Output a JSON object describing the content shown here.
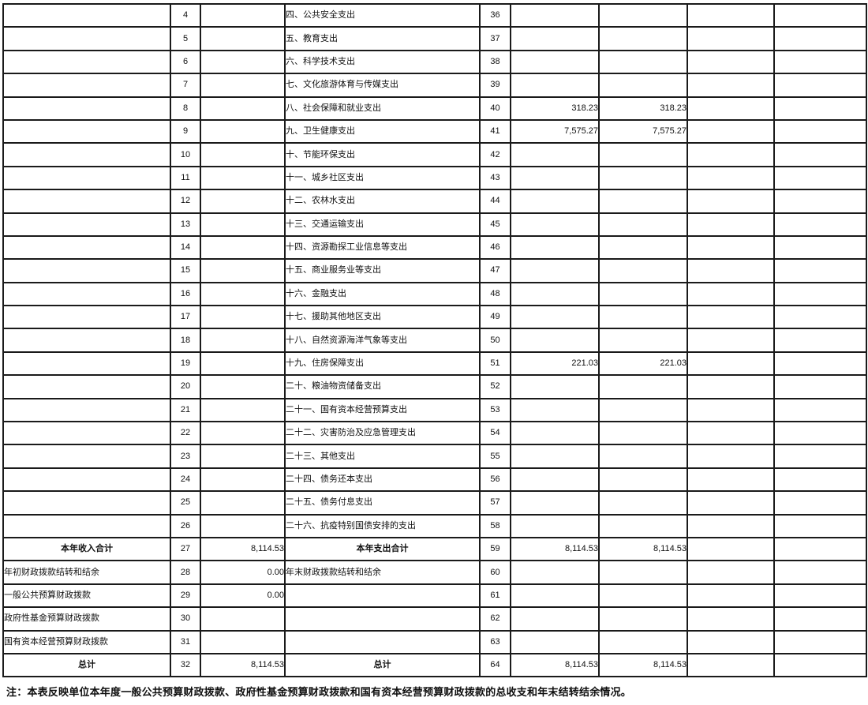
{
  "note": "注：本表反映单位本年度一般公共预算财政拨款、政府性基金预算财政拨款和国有资本经营预算财政拨款的总收支和年末结转结余情况。",
  "totals": {
    "current_year_income_total": "8,114.53",
    "current_year_expenditure_total": "8,114.53",
    "grand_total": "8,114.53"
  },
  "table": {
    "rows": [
      {
        "left_label": "",
        "left_style": "empty",
        "left_line": "4",
        "left_value": "",
        "right_label": "四、公共安全支出",
        "right_style": "item",
        "right_line": "36",
        "right_value1": "",
        "right_value2": ""
      },
      {
        "left_label": "",
        "left_style": "empty",
        "left_line": "5",
        "left_value": "",
        "right_label": "五、教育支出",
        "right_style": "item",
        "right_line": "37",
        "right_value1": "",
        "right_value2": ""
      },
      {
        "left_label": "",
        "left_style": "empty",
        "left_line": "6",
        "left_value": "",
        "right_label": "六、科学技术支出",
        "right_style": "item",
        "right_line": "38",
        "right_value1": "",
        "right_value2": ""
      },
      {
        "left_label": "",
        "left_style": "empty",
        "left_line": "7",
        "left_value": "",
        "right_label": "七、文化旅游体育与传媒支出",
        "right_style": "item",
        "right_line": "39",
        "right_value1": "",
        "right_value2": ""
      },
      {
        "left_label": "",
        "left_style": "empty",
        "left_line": "8",
        "left_value": "",
        "right_label": "八、社会保障和就业支出",
        "right_style": "item",
        "right_line": "40",
        "right_value1": "318.23",
        "right_value2": "318.23"
      },
      {
        "left_label": "",
        "left_style": "empty",
        "left_line": "9",
        "left_value": "",
        "right_label": "九、卫生健康支出",
        "right_style": "item",
        "right_line": "41",
        "right_value1": "7,575.27",
        "right_value2": "7,575.27"
      },
      {
        "left_label": "",
        "left_style": "empty",
        "left_line": "10",
        "left_value": "",
        "right_label": "十、节能环保支出",
        "right_style": "item",
        "right_line": "42",
        "right_value1": "",
        "right_value2": ""
      },
      {
        "left_label": "",
        "left_style": "empty",
        "left_line": "11",
        "left_value": "",
        "right_label": "十一、城乡社区支出",
        "right_style": "item",
        "right_line": "43",
        "right_value1": "",
        "right_value2": ""
      },
      {
        "left_label": "",
        "left_style": "empty",
        "left_line": "12",
        "left_value": "",
        "right_label": "十二、农林水支出",
        "right_style": "item",
        "right_line": "44",
        "right_value1": "",
        "right_value2": ""
      },
      {
        "left_label": "",
        "left_style": "empty",
        "left_line": "13",
        "left_value": "",
        "right_label": "十三、交通运输支出",
        "right_style": "item",
        "right_line": "45",
        "right_value1": "",
        "right_value2": ""
      },
      {
        "left_label": "",
        "left_style": "empty",
        "left_line": "14",
        "left_value": "",
        "right_label": "十四、资源勘探工业信息等支出",
        "right_style": "item",
        "right_line": "46",
        "right_value1": "",
        "right_value2": ""
      },
      {
        "left_label": "",
        "left_style": "empty",
        "left_line": "15",
        "left_value": "",
        "right_label": "十五、商业服务业等支出",
        "right_style": "item",
        "right_line": "47",
        "right_value1": "",
        "right_value2": ""
      },
      {
        "left_label": "",
        "left_style": "empty",
        "left_line": "16",
        "left_value": "",
        "right_label": "十六、金融支出",
        "right_style": "item",
        "right_line": "48",
        "right_value1": "",
        "right_value2": ""
      },
      {
        "left_label": "",
        "left_style": "empty",
        "left_line": "17",
        "left_value": "",
        "right_label": "十七、援助其他地区支出",
        "right_style": "item",
        "right_line": "49",
        "right_value1": "",
        "right_value2": ""
      },
      {
        "left_label": "",
        "left_style": "empty",
        "left_line": "18",
        "left_value": "",
        "right_label": "十八、自然资源海洋气象等支出",
        "right_style": "item",
        "right_line": "50",
        "right_value1": "",
        "right_value2": ""
      },
      {
        "left_label": "",
        "left_style": "empty",
        "left_line": "19",
        "left_value": "",
        "right_label": "十九、住房保障支出",
        "right_style": "item",
        "right_line": "51",
        "right_value1": "221.03",
        "right_value2": "221.03"
      },
      {
        "left_label": "",
        "left_style": "empty",
        "left_line": "20",
        "left_value": "",
        "right_label": "二十、粮油物资储备支出",
        "right_style": "item",
        "right_line": "52",
        "right_value1": "",
        "right_value2": ""
      },
      {
        "left_label": "",
        "left_style": "empty",
        "left_line": "21",
        "left_value": "",
        "right_label": "二十一、国有资本经营预算支出",
        "right_style": "item",
        "right_line": "53",
        "right_value1": "",
        "right_value2": ""
      },
      {
        "left_label": "",
        "left_style": "empty",
        "left_line": "22",
        "left_value": "",
        "right_label": "二十二、灾害防治及应急管理支出",
        "right_style": "item",
        "right_line": "54",
        "right_value1": "",
        "right_value2": ""
      },
      {
        "left_label": "",
        "left_style": "empty",
        "left_line": "23",
        "left_value": "",
        "right_label": "二十三、其他支出",
        "right_style": "item",
        "right_line": "55",
        "right_value1": "",
        "right_value2": ""
      },
      {
        "left_label": "",
        "left_style": "empty",
        "left_line": "24",
        "left_value": "",
        "right_label": "二十四、债务还本支出",
        "right_style": "item",
        "right_line": "56",
        "right_value1": "",
        "right_value2": ""
      },
      {
        "left_label": "",
        "left_style": "empty",
        "left_line": "25",
        "left_value": "",
        "right_label": "二十五、债务付息支出",
        "right_style": "item",
        "right_line": "57",
        "right_value1": "",
        "right_value2": ""
      },
      {
        "left_label": "",
        "left_style": "empty",
        "left_line": "26",
        "left_value": "",
        "right_label": "二十六、抗疫特别国债安排的支出",
        "right_style": "item",
        "right_line": "58",
        "right_value1": "",
        "right_value2": ""
      },
      {
        "left_label": "本年收入合计",
        "left_style": "total",
        "left_line": "27",
        "left_value": "8,114.53",
        "right_label": "本年支出合计",
        "right_style": "total",
        "right_line": "59",
        "right_value1": "8,114.53",
        "right_value2": "8,114.53"
      },
      {
        "left_label": "年初财政拨款结转和结余",
        "left_style": "plain",
        "left_line": "28",
        "left_value": "0.00",
        "right_label": "年末财政拨款结转和结余",
        "right_style": "plain",
        "right_line": "60",
        "right_value1": "",
        "right_value2": ""
      },
      {
        "left_label": "一般公共预算财政拨款",
        "left_style": "ind-a",
        "left_line": "29",
        "left_value": "0.00",
        "right_label": "",
        "right_style": "empty",
        "right_line": "61",
        "right_value1": "",
        "right_value2": ""
      },
      {
        "left_label": "政府性基金预算财政拨款",
        "left_style": "ind-b",
        "left_line": "30",
        "left_value": "",
        "right_label": "",
        "right_style": "empty",
        "right_line": "62",
        "right_value1": "",
        "right_value2": ""
      },
      {
        "left_label": "国有资本经营预算财政拨款",
        "left_style": "ind-b",
        "left_line": "31",
        "left_value": "",
        "right_label": "",
        "right_style": "empty",
        "right_line": "63",
        "right_value1": "",
        "right_value2": ""
      },
      {
        "left_label": "总计",
        "left_style": "total",
        "left_line": "32",
        "left_value": "8,114.53",
        "right_label": "总计",
        "right_style": "total",
        "right_line": "64",
        "right_value1": "8,114.53",
        "right_value2": "8,114.53"
      }
    ]
  }
}
